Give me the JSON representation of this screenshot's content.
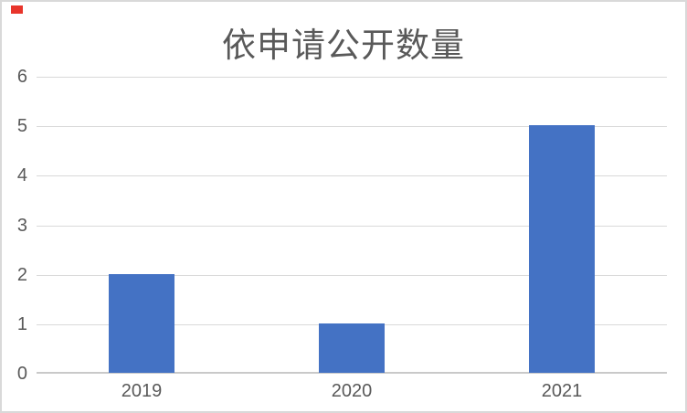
{
  "chart_data": {
    "type": "bar",
    "title": "依申请公开数量",
    "categories": [
      "2019",
      "2020",
      "2021"
    ],
    "values": [
      2,
      1,
      5
    ],
    "xlabel": "",
    "ylabel": "",
    "ylim": [
      0,
      6
    ],
    "yticks": [
      0,
      1,
      2,
      3,
      4,
      5,
      6
    ],
    "grid": true,
    "legend": false,
    "bar_color": "#4472C4"
  },
  "colors": {
    "bar": "#4472C4",
    "gridline": "#D9D9D9",
    "axis_line": "#C9C9C9",
    "text": "#595959",
    "border": "#D9D9D9",
    "marker_red": "#E8352B"
  }
}
